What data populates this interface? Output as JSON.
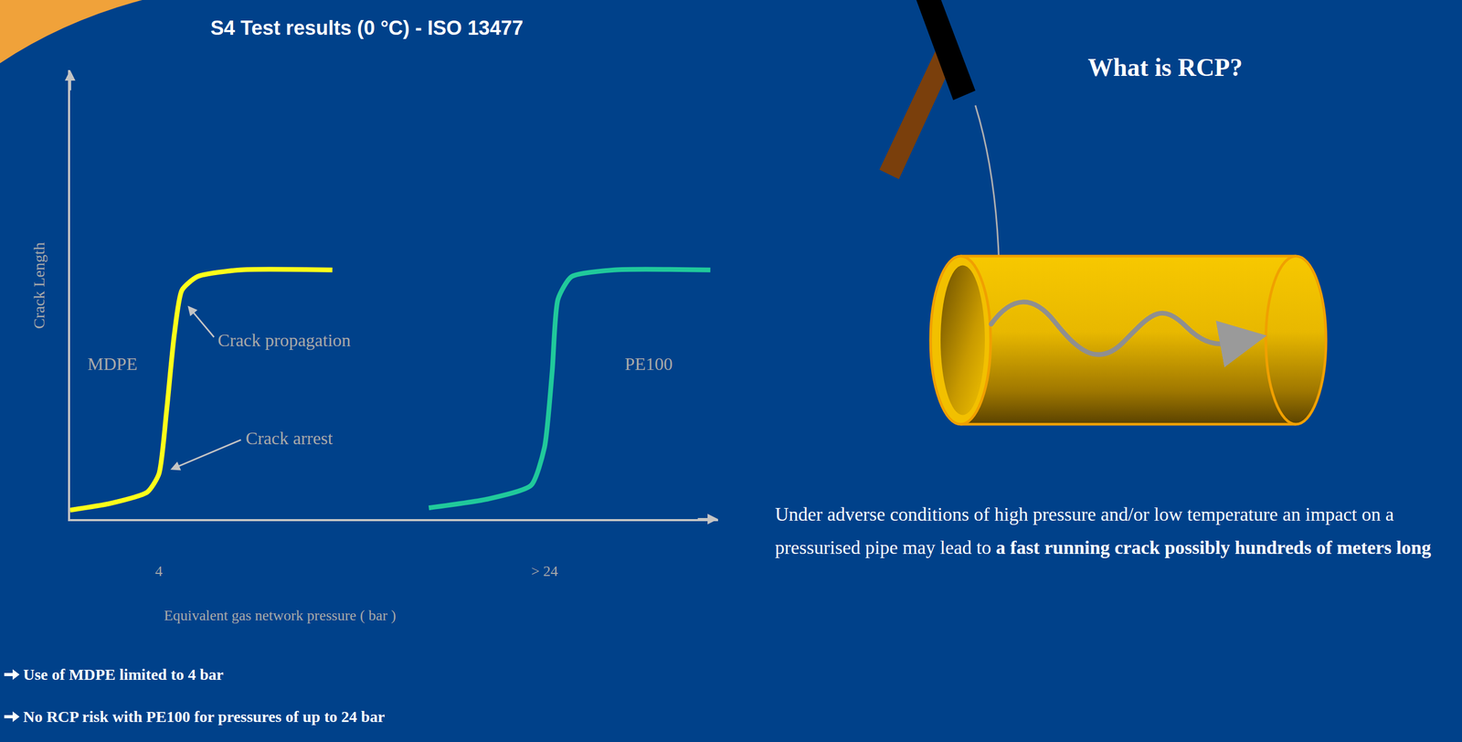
{
  "chart_data": {
    "type": "line",
    "title": "S4 Test results (0 °C) - ISO 13477",
    "x_label": "Equivalent gas network pressure ( bar )",
    "y_label": "Crack Length",
    "xlim": [
      -0.6,
      33
    ],
    "ylim": [
      0,
      10
    ],
    "xticks": [
      4,
      {
        "value": 24,
        "label": "> 24"
      }
    ],
    "tick_labels": "x",
    "grid": false,
    "series": [
      {
        "color": "#ffff1a",
        "x": [
          -0.6,
          1.5,
          3.4,
          4.0,
          4.4,
          4.8,
          5.2,
          6.0,
          8.2,
          13.0
        ],
        "values": [
          0.2,
          0.35,
          0.6,
          1.0,
          2.4,
          4.1,
          5.1,
          5.4,
          5.55,
          5.55
        ]
      },
      {
        "color": "#20c99b",
        "x": [
          18.0,
          21.1,
          23.3,
          24.0,
          24.4,
          24.7,
          25.4,
          27.6,
          32.6
        ],
        "values": [
          0.25,
          0.45,
          0.75,
          1.6,
          3.3,
          4.9,
          5.4,
          5.55,
          5.55
        ]
      }
    ],
    "annotations": [
      {
        "text": "MDPE",
        "x": 1.6,
        "y": 3.46
      },
      {
        "text": "PE100",
        "x": 29.4,
        "y": 3.46
      },
      {
        "text": "Crack propagation",
        "x": 7.0,
        "y": 3.98,
        "arrow_x": 5.5,
        "arrow_y": 4.75
      },
      {
        "text": "Crack arrest",
        "x": 8.45,
        "y": 1.8,
        "arrow_x": 4.6,
        "arrow_y": 1.1
      }
    ]
  },
  "notes": [
    "Use of MDPE limited to 4 bar",
    "No RCP risk with PE100 for pressures of up to 24 bar"
  ],
  "rcp_panel": {
    "title": "What is RCP?",
    "text": [
      {
        "text": "Under adverse conditions of high pressure and/or low temperature an impact on a pressurised pipe may lead to ",
        "bold": false
      },
      {
        "text": "a fast running crack possibly hundreds of meters long",
        "bold": true
      }
    ]
  }
}
